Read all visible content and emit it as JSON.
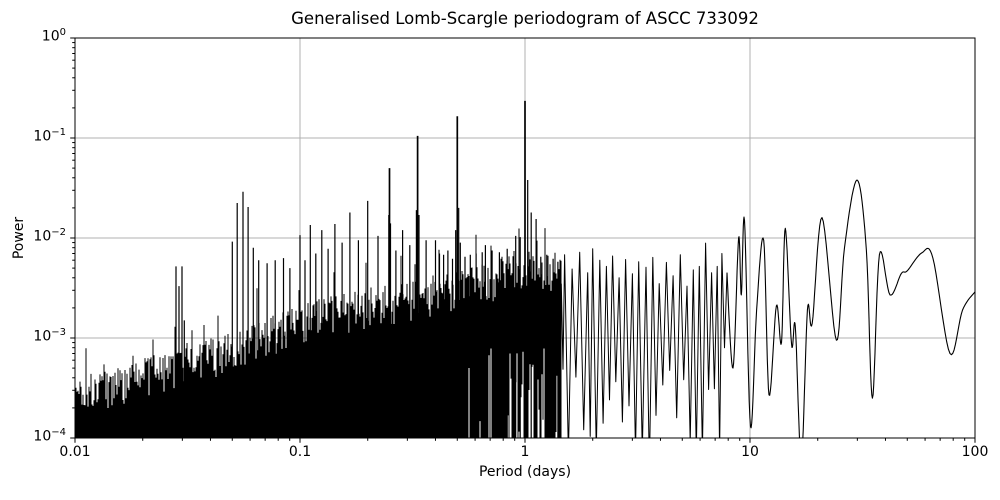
{
  "chart_data": {
    "type": "line",
    "title": "Generalised Lomb-Scargle periodogram of ASCC 733092",
    "xlabel": "Period (days)",
    "ylabel": "Power",
    "xscale": "log",
    "yscale": "log",
    "xlim": [
      0.01,
      100
    ],
    "ylim": [
      0.0001,
      1
    ],
    "grid": true,
    "legend": "none",
    "line_color": "#000000",
    "grid_color": "#b0b0b0",
    "spine_color": "#000000",
    "background": "#ffffff",
    "x_ticks": [
      {
        "v": 0.01,
        "label": "0.01"
      },
      {
        "v": 0.1,
        "label": "0.1"
      },
      {
        "v": 1,
        "label": "1"
      },
      {
        "v": 10,
        "label": "10"
      },
      {
        "v": 100,
        "label": "100"
      }
    ],
    "y_ticks": [
      {
        "v": 1,
        "exp": "0"
      },
      {
        "v": 0.1,
        "exp": "−1"
      },
      {
        "v": 0.01,
        "exp": "−2"
      },
      {
        "v": 0.001,
        "exp": "−3"
      },
      {
        "v": 0.0001,
        "exp": "−4"
      }
    ],
    "noise_envelope": [
      [
        0.01,
        0.00028
      ],
      [
        0.015,
        0.00036
      ],
      [
        0.022,
        0.00046
      ],
      [
        0.03,
        0.00055
      ],
      [
        0.045,
        0.00075
      ],
      [
        0.065,
        0.001
      ],
      [
        0.09,
        0.0014
      ],
      [
        0.13,
        0.0018
      ],
      [
        0.2,
        0.0022
      ],
      [
        0.3,
        0.0026
      ],
      [
        0.45,
        0.0031
      ],
      [
        0.65,
        0.0038
      ],
      [
        0.9,
        0.0052
      ],
      [
        1.1,
        0.0056
      ],
      [
        1.45,
        0.0042
      ]
    ],
    "peaks_dense": [
      [
        0.0281,
        0.0052
      ],
      [
        0.029,
        0.0033
      ],
      [
        0.0299,
        0.0052
      ],
      [
        0.0306,
        0.0015
      ],
      [
        0.05,
        0.0092
      ],
      [
        0.0526,
        0.0224
      ],
      [
        0.0558,
        0.029
      ],
      [
        0.0588,
        0.0204
      ],
      [
        0.062,
        0.008
      ],
      [
        0.0655,
        0.006
      ],
      [
        0.0714,
        0.0056
      ],
      [
        0.0776,
        0.006
      ],
      [
        0.0845,
        0.0063
      ],
      [
        0.0902,
        0.005
      ],
      [
        0.1,
        0.0107
      ],
      [
        0.1053,
        0.006
      ],
      [
        0.1111,
        0.0135
      ],
      [
        0.1176,
        0.007
      ],
      [
        0.125,
        0.012
      ],
      [
        0.1333,
        0.0078
      ],
      [
        0.1429,
        0.0138
      ],
      [
        0.1538,
        0.009
      ],
      [
        0.1667,
        0.018
      ],
      [
        0.1818,
        0.0095
      ],
      [
        0.2,
        0.0235
      ],
      [
        0.2222,
        0.0105
      ],
      [
        0.248,
        0.017
      ],
      [
        0.25,
        0.05
      ],
      [
        0.2525,
        0.014
      ],
      [
        0.2667,
        0.0075
      ],
      [
        0.2857,
        0.012
      ],
      [
        0.3077,
        0.0085
      ],
      [
        0.3292,
        0.019
      ],
      [
        0.3333,
        0.105
      ],
      [
        0.3379,
        0.017
      ],
      [
        0.3636,
        0.0095
      ],
      [
        0.4,
        0.0095
      ],
      [
        0.4167,
        0.007
      ],
      [
        0.4348,
        0.0068
      ],
      [
        0.4545,
        0.0075
      ],
      [
        0.4762,
        0.0062
      ],
      [
        0.492,
        0.012
      ],
      [
        0.5,
        0.165
      ],
      [
        0.5076,
        0.02
      ],
      [
        0.5155,
        0.009
      ],
      [
        0.541,
        0.0065
      ],
      [
        0.5714,
        0.0068
      ],
      [
        0.6061,
        0.007
      ],
      [
        0.6452,
        0.0072
      ],
      [
        0.6667,
        0.0085
      ],
      [
        0.7143,
        0.0075
      ],
      [
        0.7692,
        0.0072
      ],
      [
        0.8333,
        0.0078
      ],
      [
        0.9091,
        0.0105
      ],
      [
        0.952,
        0.0102
      ],
      [
        1.0,
        0.235
      ],
      [
        1.028,
        0.038
      ],
      [
        1.065,
        0.018
      ],
      [
        1.12,
        0.0155
      ],
      [
        1.175,
        0.0065
      ],
      [
        1.25,
        0.0068
      ],
      [
        1.333,
        0.0062
      ],
      [
        1.4,
        0.0058
      ]
    ],
    "peaks_mid": [
      [
        1.5,
        0.0068
      ],
      [
        1.62,
        0.0049
      ],
      [
        1.75,
        0.0072
      ],
      [
        1.9,
        0.0045
      ],
      [
        2.0,
        0.0078
      ],
      [
        2.15,
        0.006
      ],
      [
        2.3,
        0.0052
      ],
      [
        2.45,
        0.0066
      ],
      [
        2.62,
        0.004
      ],
      [
        2.8,
        0.0061
      ],
      [
        3.0,
        0.0044
      ],
      [
        3.2,
        0.0058
      ],
      [
        3.45,
        0.0051
      ],
      [
        3.7,
        0.0064
      ],
      [
        3.95,
        0.0035
      ],
      [
        4.25,
        0.0057
      ],
      [
        4.55,
        0.0042
      ],
      [
        4.9,
        0.0068
      ],
      [
        5.25,
        0.0033
      ],
      [
        5.6,
        0.0048
      ],
      [
        5.95,
        0.0052
      ],
      [
        6.35,
        0.0089
      ],
      [
        6.75,
        0.0045
      ],
      [
        7.15,
        0.0052
      ],
      [
        7.5,
        0.007
      ]
    ],
    "mid_dip_log_range": [
      -4.5,
      -3.3
    ],
    "smooth_curve": [
      [
        7.9,
        0.0045
      ],
      [
        8.4,
        0.0005
      ],
      [
        8.9,
        0.01
      ],
      [
        9.15,
        0.0027
      ],
      [
        9.45,
        0.015
      ],
      [
        10.05,
        0.00013
      ],
      [
        10.7,
        0.0019
      ],
      [
        11.5,
        0.0095
      ],
      [
        12.15,
        0.00027
      ],
      [
        13.1,
        0.0021
      ],
      [
        13.8,
        0.0009
      ],
      [
        14.35,
        0.0125
      ],
      [
        15.3,
        0.00086
      ],
      [
        15.9,
        0.0013
      ],
      [
        16.9,
        6e-05
      ],
      [
        18.0,
        0.0019
      ],
      [
        18.9,
        0.0014
      ],
      [
        20.9,
        0.016
      ],
      [
        24.2,
        0.00095
      ],
      [
        26.3,
        0.008
      ],
      [
        29.9,
        0.038
      ],
      [
        32.9,
        0.0075
      ],
      [
        35.0,
        0.00025
      ],
      [
        37.6,
        0.0068
      ],
      [
        41.9,
        0.0027
      ],
      [
        47.0,
        0.0044
      ],
      [
        50.0,
        0.0047
      ],
      [
        58.0,
        0.0071
      ],
      [
        65.0,
        0.0063
      ],
      [
        77.4,
        0.0007
      ],
      [
        88.0,
        0.0019
      ],
      [
        100.0,
        0.0029
      ]
    ]
  }
}
